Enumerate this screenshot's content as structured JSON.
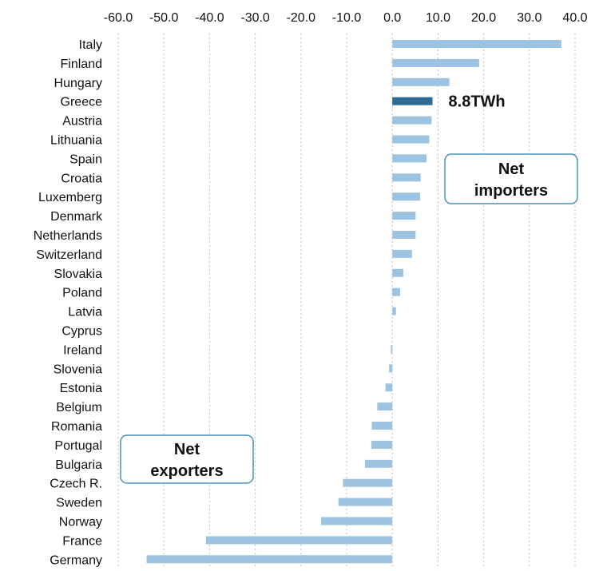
{
  "chart_data": {
    "type": "bar",
    "orientation": "horizontal",
    "categories": [
      "Italy",
      "Finland",
      "Hungary",
      "Greece",
      "Austria",
      "Lithuania",
      "Spain",
      "Croatia",
      "Luxemberg",
      "Denmark",
      "Netherlands",
      "Switzerland",
      "Slovakia",
      "Poland",
      "Latvia",
      "Cyprus",
      "Ireland",
      "Slovenia",
      "Estonia",
      "Belgium",
      "Romania",
      "Portugal",
      "Bulgaria",
      "Czech R.",
      "Sweden",
      "Norway",
      "France",
      "Germany"
    ],
    "values": [
      37.0,
      19.0,
      12.5,
      8.8,
      8.6,
      8.1,
      7.5,
      6.2,
      6.1,
      5.1,
      5.1,
      4.3,
      2.4,
      1.7,
      0.8,
      0.0,
      -0.3,
      -0.7,
      -1.5,
      -3.3,
      -4.5,
      -4.6,
      -6.0,
      -10.8,
      -11.8,
      -15.6,
      -40.8,
      -53.8
    ],
    "highlight_category": "Greece",
    "highlight_label": "8.8TWh",
    "xlim": [
      -60,
      40
    ],
    "x_ticks": [
      "-60.0",
      "-50.0",
      "-40.0",
      "-30.0",
      "-20.0",
      "-10.0",
      "0.0",
      "10.0",
      "20.0",
      "30.0",
      "40.0"
    ],
    "x_axis_position": "top",
    "grid": "vertical dotted",
    "colors": {
      "bar": "#9dc3e2",
      "highlight": "#2e6b96",
      "callout_border": "#4a90b8"
    },
    "annotations": {
      "importers": [
        "Net",
        "importers"
      ],
      "exporters": [
        "Net",
        "exporters"
      ]
    }
  }
}
